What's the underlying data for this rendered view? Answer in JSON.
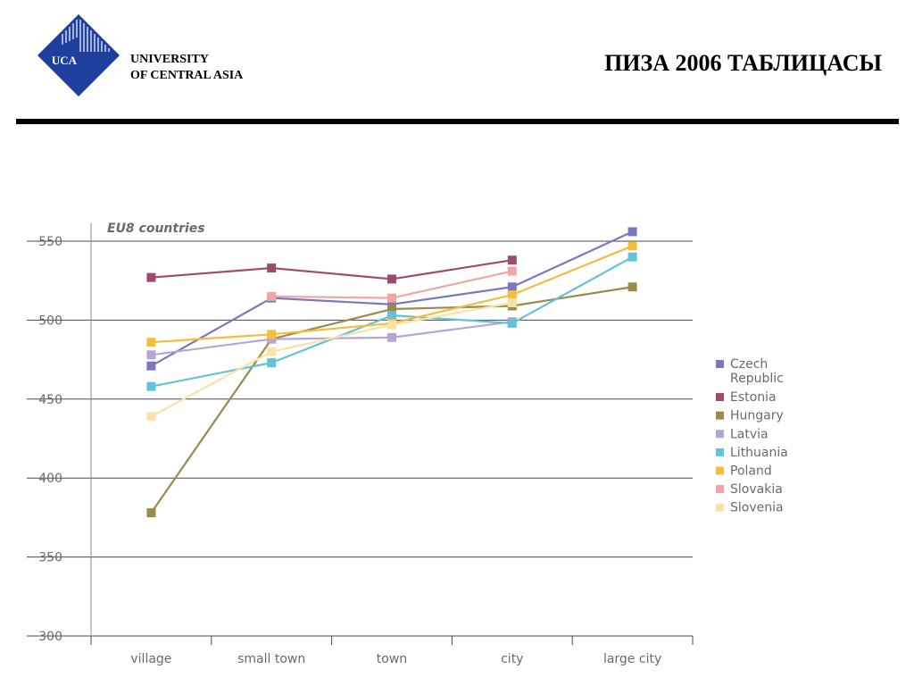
{
  "header": {
    "logo_text": "UCA",
    "university_line1": "UNIVERSITY",
    "university_line2": "OF CENTRAL ASIA",
    "slide_title": "ПИЗА 2006 ТАБЛИЦАСЫ"
  },
  "colors": {
    "logo_blue": "#1f3f9e",
    "gridline": "#4a4a4a",
    "axis_text": "#6a6a6a"
  },
  "chart_data": {
    "type": "line",
    "title": "EU8 countries",
    "xlabel": "",
    "ylabel": "",
    "categories": [
      "village",
      "small town",
      "town",
      "city",
      "large city"
    ],
    "ylim": [
      300,
      550
    ],
    "yticks": [
      550,
      500,
      450,
      400,
      350,
      300
    ],
    "grid": true,
    "legend_position": "right",
    "series": [
      {
        "name": "Czech Republic",
        "color": "#7b78bd",
        "values": [
          471,
          514,
          510,
          521,
          556
        ]
      },
      {
        "name": "Estonia",
        "color": "#9e4a6c",
        "values": [
          527,
          533,
          526,
          538,
          null
        ]
      },
      {
        "name": "Hungary",
        "color": "#9b8a4e",
        "values": [
          378,
          488,
          507,
          509,
          521
        ]
      },
      {
        "name": "Latvia",
        "color": "#b6a6d3",
        "values": [
          478,
          488,
          489,
          499,
          null
        ]
      },
      {
        "name": "Lithuania",
        "color": "#62c3d8",
        "values": [
          458,
          473,
          503,
          498,
          540
        ]
      },
      {
        "name": "Poland",
        "color": "#f6bc3c",
        "values": [
          486,
          491,
          498,
          516,
          547
        ]
      },
      {
        "name": "Slovakia",
        "color": "#f0a6a3",
        "values": [
          null,
          515,
          514,
          531,
          null
        ]
      },
      {
        "name": "Slovenia",
        "color": "#f8e3a6",
        "values": [
          439,
          480,
          497,
          511,
          null
        ]
      }
    ]
  }
}
